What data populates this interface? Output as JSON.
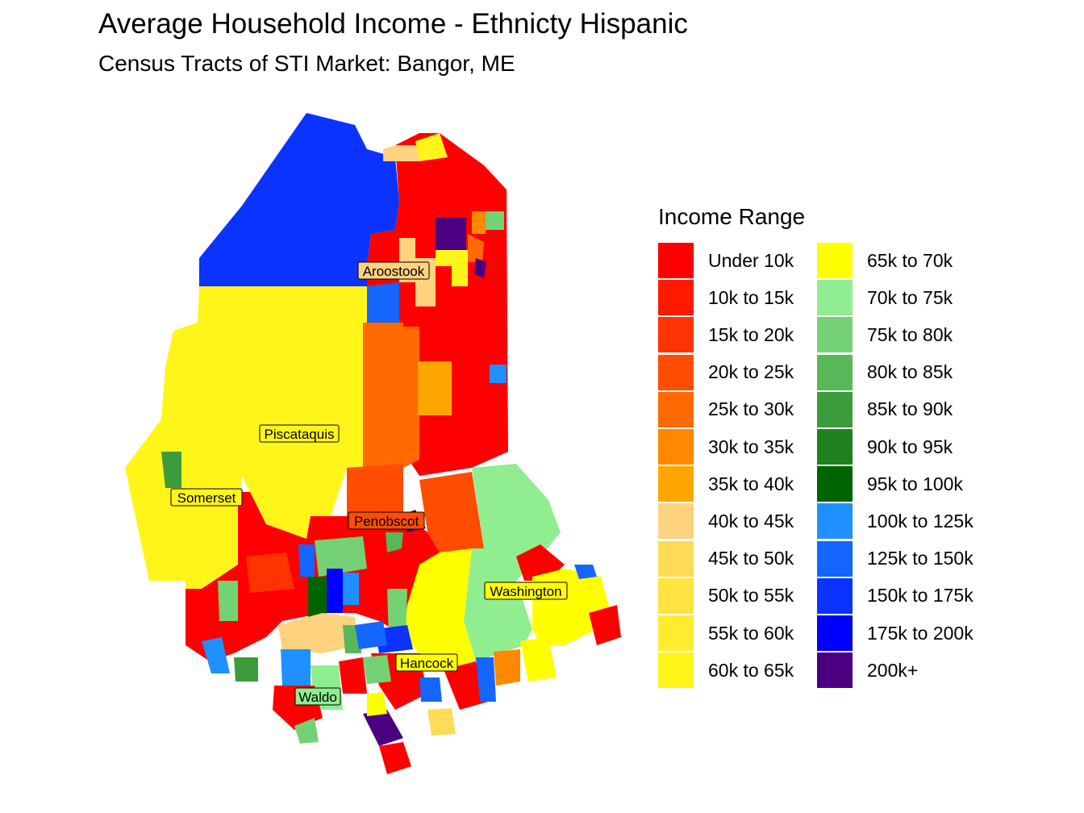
{
  "title": "Average Household Income - Ethnicty Hispanic",
  "subtitle": "Census Tracts of STI Market: Bangor, ME",
  "legend": {
    "title": "Income Range",
    "items": [
      {
        "label": "Under 10k",
        "color": "#ff0000"
      },
      {
        "label": "10k to 15k",
        "color": "#ff1a00"
      },
      {
        "label": "15k to 20k",
        "color": "#ff3300"
      },
      {
        "label": "20k to 25k",
        "color": "#ff4d00"
      },
      {
        "label": "25k to 30k",
        "color": "#ff6a00"
      },
      {
        "label": "30k to 35k",
        "color": "#ff8800"
      },
      {
        "label": "35k to 40k",
        "color": "#ffa500"
      },
      {
        "label": "40k to 45k",
        "color": "#ffd27f"
      },
      {
        "label": "45k to 50k",
        "color": "#ffdb58"
      },
      {
        "label": "50k to 55k",
        "color": "#ffe340"
      },
      {
        "label": "55k to 60k",
        "color": "#ffec30"
      },
      {
        "label": "60k to 65k",
        "color": "#fff519"
      },
      {
        "label": "65k to 70k",
        "color": "#ffff00"
      },
      {
        "label": "70k to 75k",
        "color": "#90ee90"
      },
      {
        "label": "75k to 80k",
        "color": "#74d274"
      },
      {
        "label": "80k to 85k",
        "color": "#58b858"
      },
      {
        "label": "85k to 90k",
        "color": "#3c9c3c"
      },
      {
        "label": "90k to 95k",
        "color": "#208020"
      },
      {
        "label": "95k to 100k",
        "color": "#006400"
      },
      {
        "label": "100k to 125k",
        "color": "#1e90ff"
      },
      {
        "label": "125k to 150k",
        "color": "#1466ff"
      },
      {
        "label": "150k to 175k",
        "color": "#0a33ff"
      },
      {
        "label": "175k to 200k",
        "color": "#0000ff"
      },
      {
        "label": "200k+",
        "color": "#4b0082"
      }
    ]
  },
  "counties": [
    {
      "name": "Aroostook"
    },
    {
      "name": "Piscataquis"
    },
    {
      "name": "Somerset"
    },
    {
      "name": "Penobscot"
    },
    {
      "name": "Washington"
    },
    {
      "name": "Hancock"
    },
    {
      "name": "Waldo"
    }
  ]
}
